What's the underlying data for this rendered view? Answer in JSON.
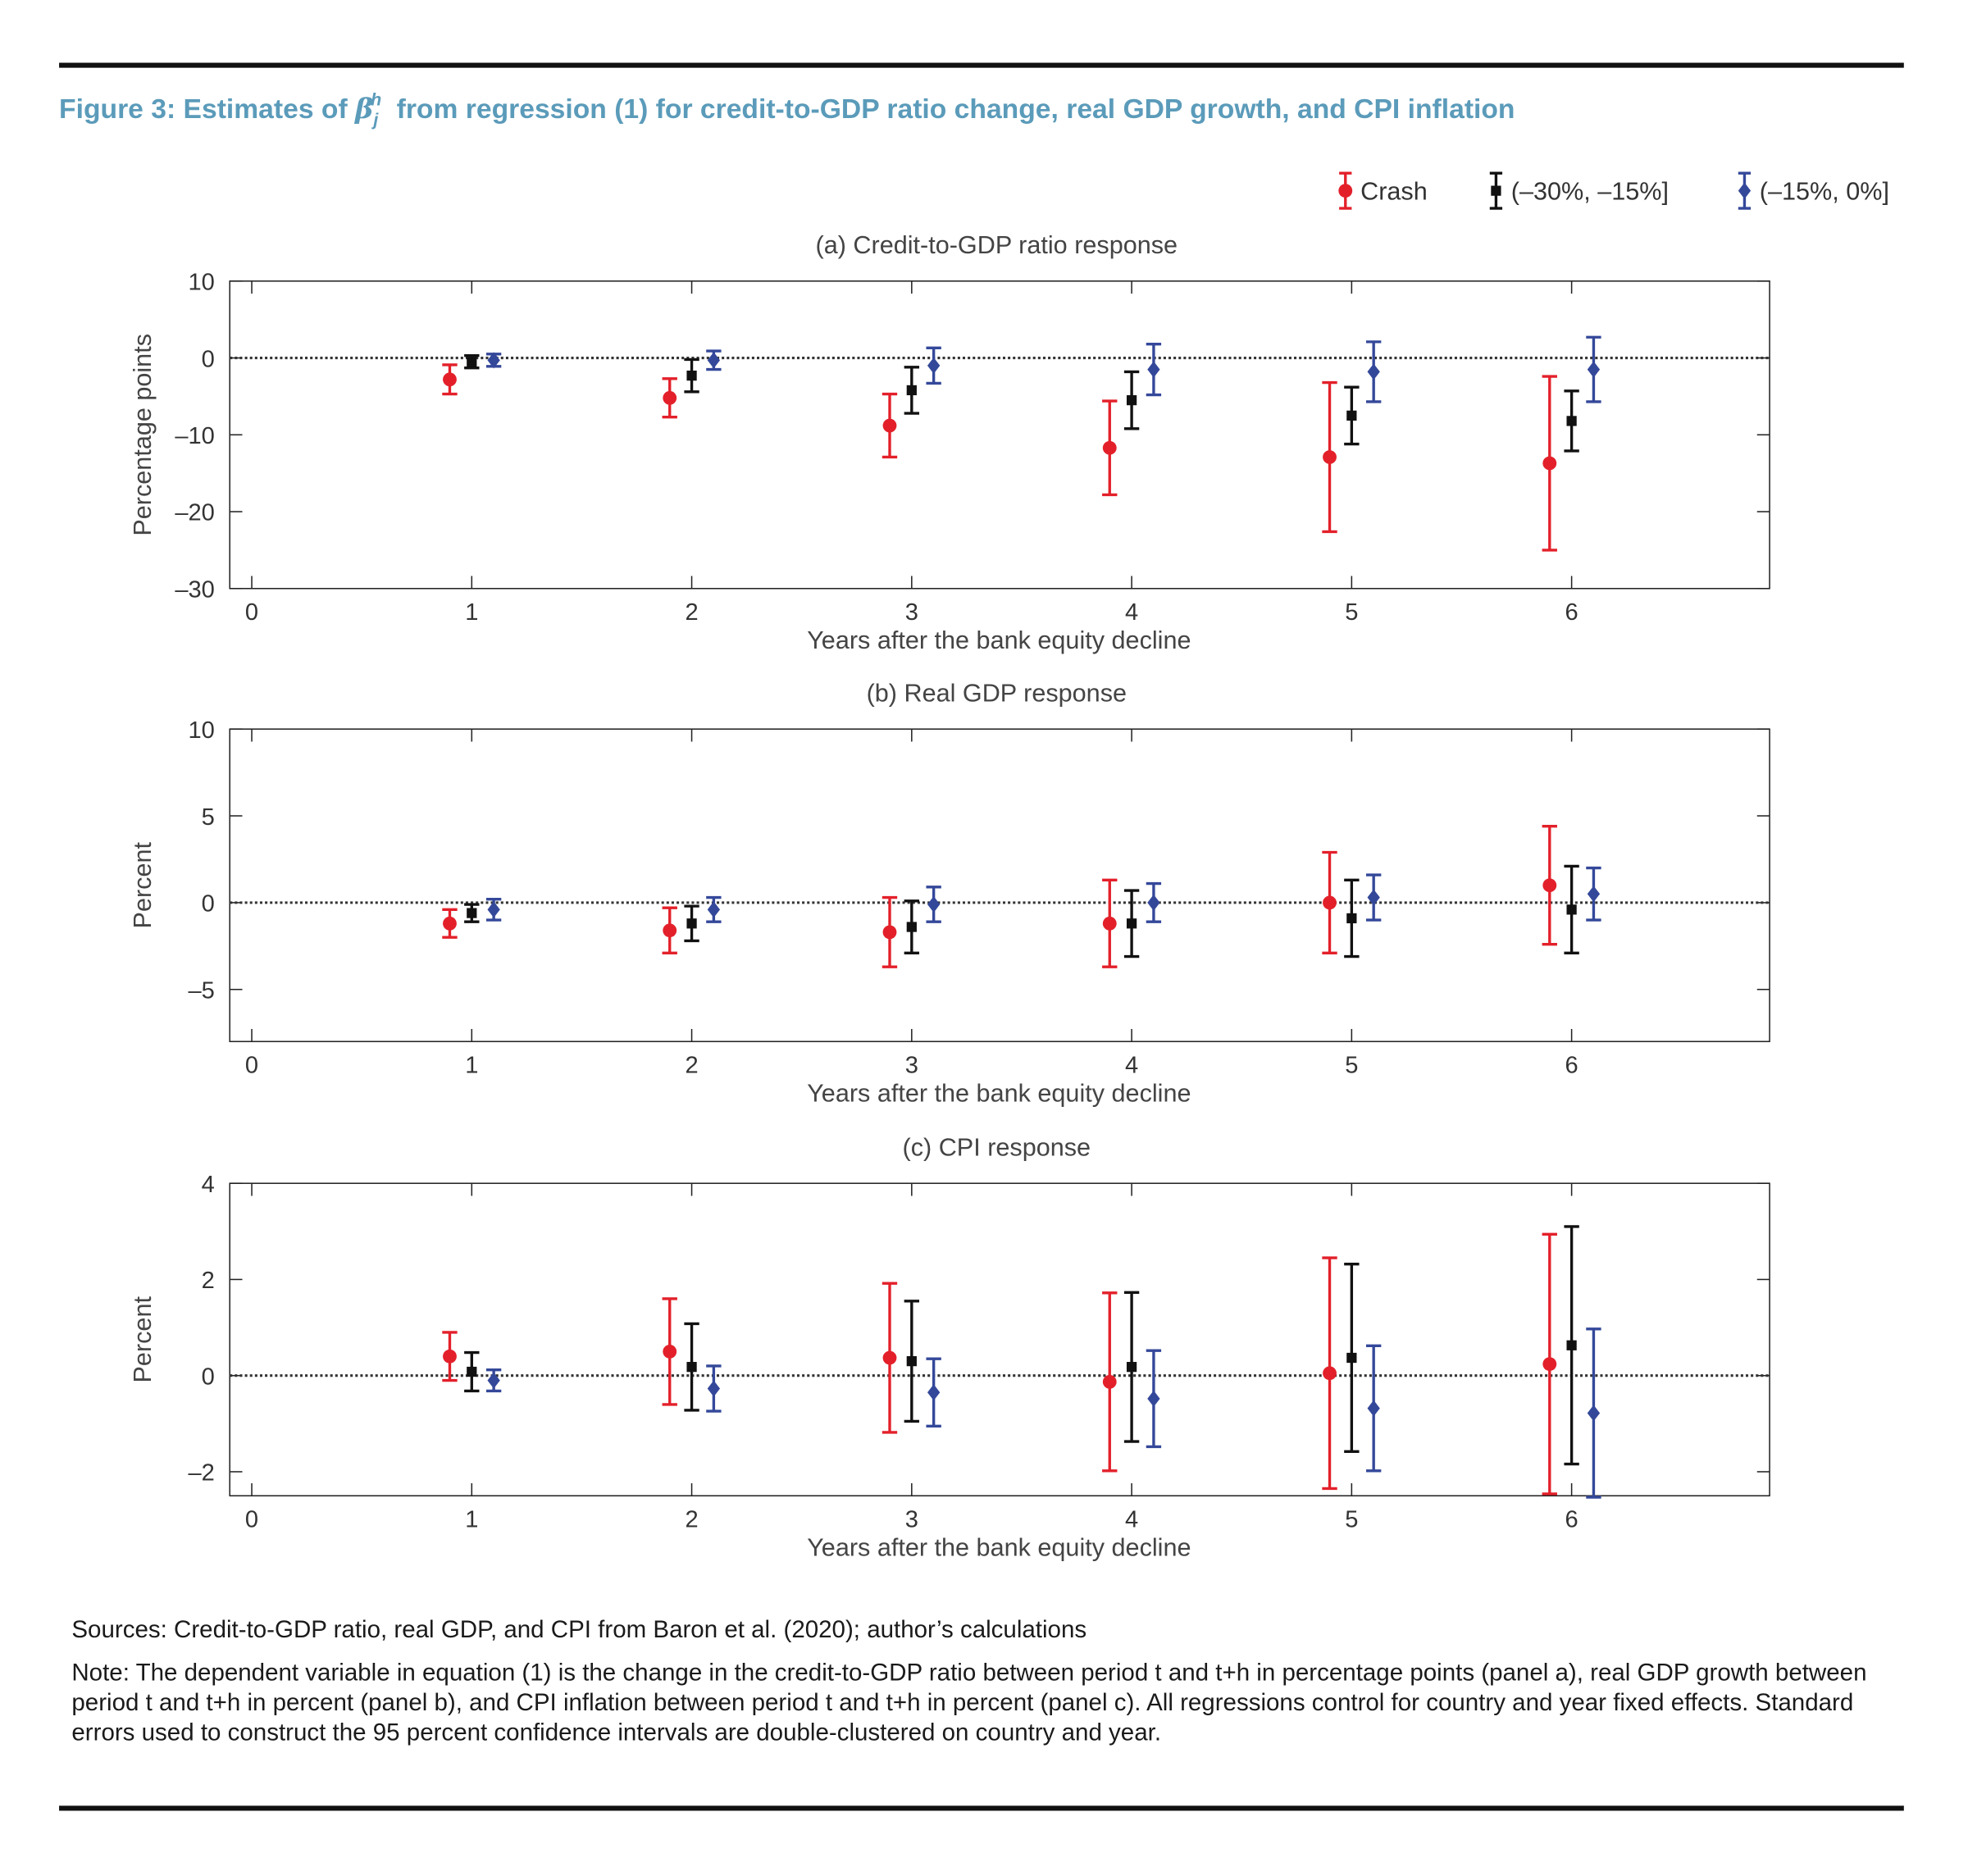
{
  "figure_title": {
    "prefix": "Figure 3: Estimates of",
    "symbol": "β",
    "sub": "j",
    "sup": "h",
    "suffix": "from regression (1) for credit-to-GDP ratio change, real GDP growth, and CPI inflation"
  },
  "chart_data": [
    {
      "type": "errorbar",
      "title": "(a) Credit-to-GDP ratio response",
      "x_label": "Years after the bank equity decline",
      "y_label": "Percentage points",
      "xlim": [
        -0.1,
        6.9
      ],
      "xticks": [
        0,
        1,
        2,
        3,
        4,
        5,
        6
      ],
      "ylim": [
        -30,
        10
      ],
      "yticks": [
        10,
        0,
        {
          "value": -10,
          "label": "–10"
        },
        {
          "value": -20,
          "label": "–20"
        },
        {
          "value": -30,
          "label": "–30"
        }
      ],
      "zero_line": true,
      "legend": "top-right",
      "series": [
        {
          "name": "Crash",
          "color": "#e3202a",
          "marker": "circle",
          "x": [
            0.9,
            1.9,
            2.9,
            3.9,
            4.9,
            5.9
          ],
          "values": [
            -2.8,
            -5.2,
            -8.8,
            -11.7,
            -12.9,
            -13.7
          ],
          "errors": [
            1.9,
            2.5,
            4.1,
            6.1,
            9.7,
            11.3
          ]
        },
        {
          "name": "(–30%, –15%]",
          "color": "#111111",
          "marker": "square",
          "x": [
            1,
            2,
            3,
            4,
            5,
            6
          ],
          "values": [
            -0.5,
            -2.3,
            -4.2,
            -5.5,
            -7.5,
            -8.2
          ],
          "errors": [
            0.8,
            2.1,
            3,
            3.7,
            3.7,
            3.9
          ]
        },
        {
          "name": "(–15%, 0%]",
          "color": "#34489a",
          "marker": "diamond",
          "x": [
            1.1,
            2.1,
            3.1,
            4.1,
            5.1,
            6.1
          ],
          "values": [
            -0.3,
            -0.3,
            -1,
            -1.5,
            -1.8,
            -1.5
          ],
          "errors": [
            0.8,
            1.2,
            2.3,
            3.3,
            3.9,
            4.2
          ]
        }
      ]
    },
    {
      "type": "errorbar",
      "title": "(b) Real GDP response",
      "x_label": "Years after the bank equity decline",
      "y_label": "Percent",
      "xlim": [
        -0.1,
        6.9
      ],
      "xticks": [
        0,
        1,
        2,
        3,
        4,
        5,
        6
      ],
      "ylim": [
        -8,
        10
      ],
      "yticks": [
        10,
        5,
        0,
        {
          "value": -5,
          "label": "–5"
        }
      ],
      "zero_line": true,
      "series": [
        {
          "color": "#e3202a",
          "marker": "circle",
          "x": [
            0.9,
            1.9,
            2.9,
            3.9,
            4.9,
            5.9
          ],
          "values": [
            -1.2,
            -1.6,
            -1.7,
            -1.2,
            0,
            1
          ],
          "errors": [
            0.8,
            1.3,
            2,
            2.5,
            2.9,
            3.4
          ]
        },
        {
          "color": "#111111",
          "marker": "square",
          "x": [
            1,
            2,
            3,
            4,
            5,
            6
          ],
          "values": [
            -0.6,
            -1.2,
            -1.4,
            -1.2,
            -0.9,
            -0.4
          ],
          "errors": [
            0.5,
            1,
            1.5,
            1.9,
            2.2,
            2.5
          ]
        },
        {
          "color": "#34489a",
          "marker": "diamond",
          "x": [
            1.1,
            2.1,
            3.1,
            4.1,
            5.1,
            6.1
          ],
          "values": [
            -0.4,
            -0.4,
            -0.1,
            0,
            0.3,
            0.5
          ],
          "errors": [
            0.6,
            0.7,
            1,
            1.1,
            1.3,
            1.5
          ]
        }
      ]
    },
    {
      "type": "errorbar",
      "title": "(c) CPI response",
      "x_label": "Years after the bank equity decline",
      "y_label": "Percent",
      "xlim": [
        -0.1,
        6.9
      ],
      "xticks": [
        0,
        1,
        2,
        3,
        4,
        5,
        6
      ],
      "ylim": [
        -2.5,
        4
      ],
      "yticks": [
        4,
        2,
        0,
        {
          "value": -2,
          "label": "–2"
        }
      ],
      "zero_line": true,
      "series": [
        {
          "color": "#e3202a",
          "marker": "circle",
          "x": [
            0.9,
            1.9,
            2.9,
            3.9,
            4.9,
            5.9
          ],
          "values": [
            0.4,
            0.5,
            0.37,
            -0.13,
            0.05,
            0.24
          ],
          "errors": [
            0.5,
            1.1,
            1.55,
            1.85,
            2.4,
            2.7
          ]
        },
        {
          "color": "#111111",
          "marker": "square",
          "x": [
            1,
            2,
            3,
            4,
            5,
            6
          ],
          "values": [
            0.08,
            0.18,
            0.3,
            0.18,
            0.37,
            0.63
          ],
          "errors": [
            0.4,
            0.9,
            1.25,
            1.55,
            1.95,
            2.47
          ]
        },
        {
          "color": "#34489a",
          "marker": "diamond",
          "x": [
            1.1,
            2.1,
            3.1,
            4.1,
            5.1,
            6.1
          ],
          "values": [
            -0.1,
            -0.27,
            -0.35,
            -0.48,
            -0.68,
            -0.78
          ],
          "errors": [
            0.22,
            0.47,
            0.7,
            1,
            1.3,
            1.75
          ]
        }
      ]
    }
  ],
  "sources": "Sources: Credit-to-GDP ratio, real GDP, and CPI from Baron et al. (2020); author’s calculations",
  "note": "Note: The dependent variable in equation (1) is the change in the credit-to-GDP ratio between period t and t+h in percentage points (panel a), real GDP growth between period t and t+h in percent (panel b), and CPI inflation between period t and t+h in percent (panel c). All regressions control for country and year fixed effects. Standard errors used to construct the 95 percent confidence intervals are double-clustered on country and year."
}
